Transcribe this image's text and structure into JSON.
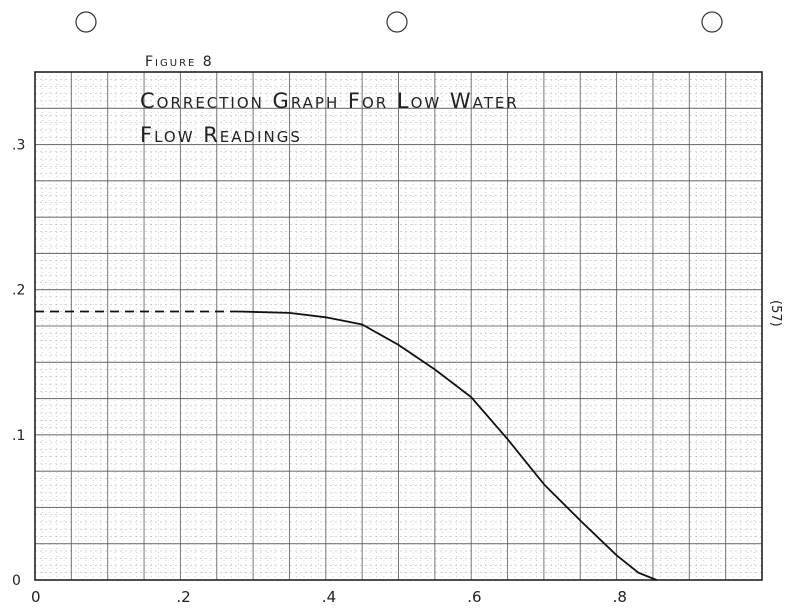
{
  "figure_label": "Figure 8",
  "page_number": "(57)",
  "chart_data": {
    "type": "line",
    "title": "Correction Graph For Low Water Flow Readings",
    "title_lines": [
      "Correction Graph For Low Water",
      "Flow Readings"
    ],
    "xlabel": "",
    "ylabel": "",
    "xlim": [
      0,
      1.0
    ],
    "ylim": [
      0,
      0.35
    ],
    "x_ticks": [
      0,
      0.2,
      0.4,
      0.6,
      0.8
    ],
    "x_tick_labels": [
      "0",
      ".2",
      ".4",
      ".6",
      ".8"
    ],
    "y_ticks": [
      0,
      0.1,
      0.2,
      0.3
    ],
    "y_tick_labels": [
      "0",
      ".1",
      ".2",
      ".3"
    ],
    "grid": true,
    "series": [
      {
        "style": "dashed",
        "x": [
          0,
          0.28
        ],
        "y": [
          0.185,
          0.185
        ]
      },
      {
        "style": "solid",
        "x": [
          0.28,
          0.35,
          0.4,
          0.45,
          0.5,
          0.55,
          0.6,
          0.65,
          0.7,
          0.75,
          0.8,
          0.83,
          0.855
        ],
        "y": [
          0.185,
          0.184,
          0.181,
          0.176,
          0.162,
          0.145,
          0.126,
          0.097,
          0.066,
          0.041,
          0.017,
          0.005,
          0
        ]
      }
    ],
    "line_color": "#111111",
    "grid_color": "#555555"
  }
}
